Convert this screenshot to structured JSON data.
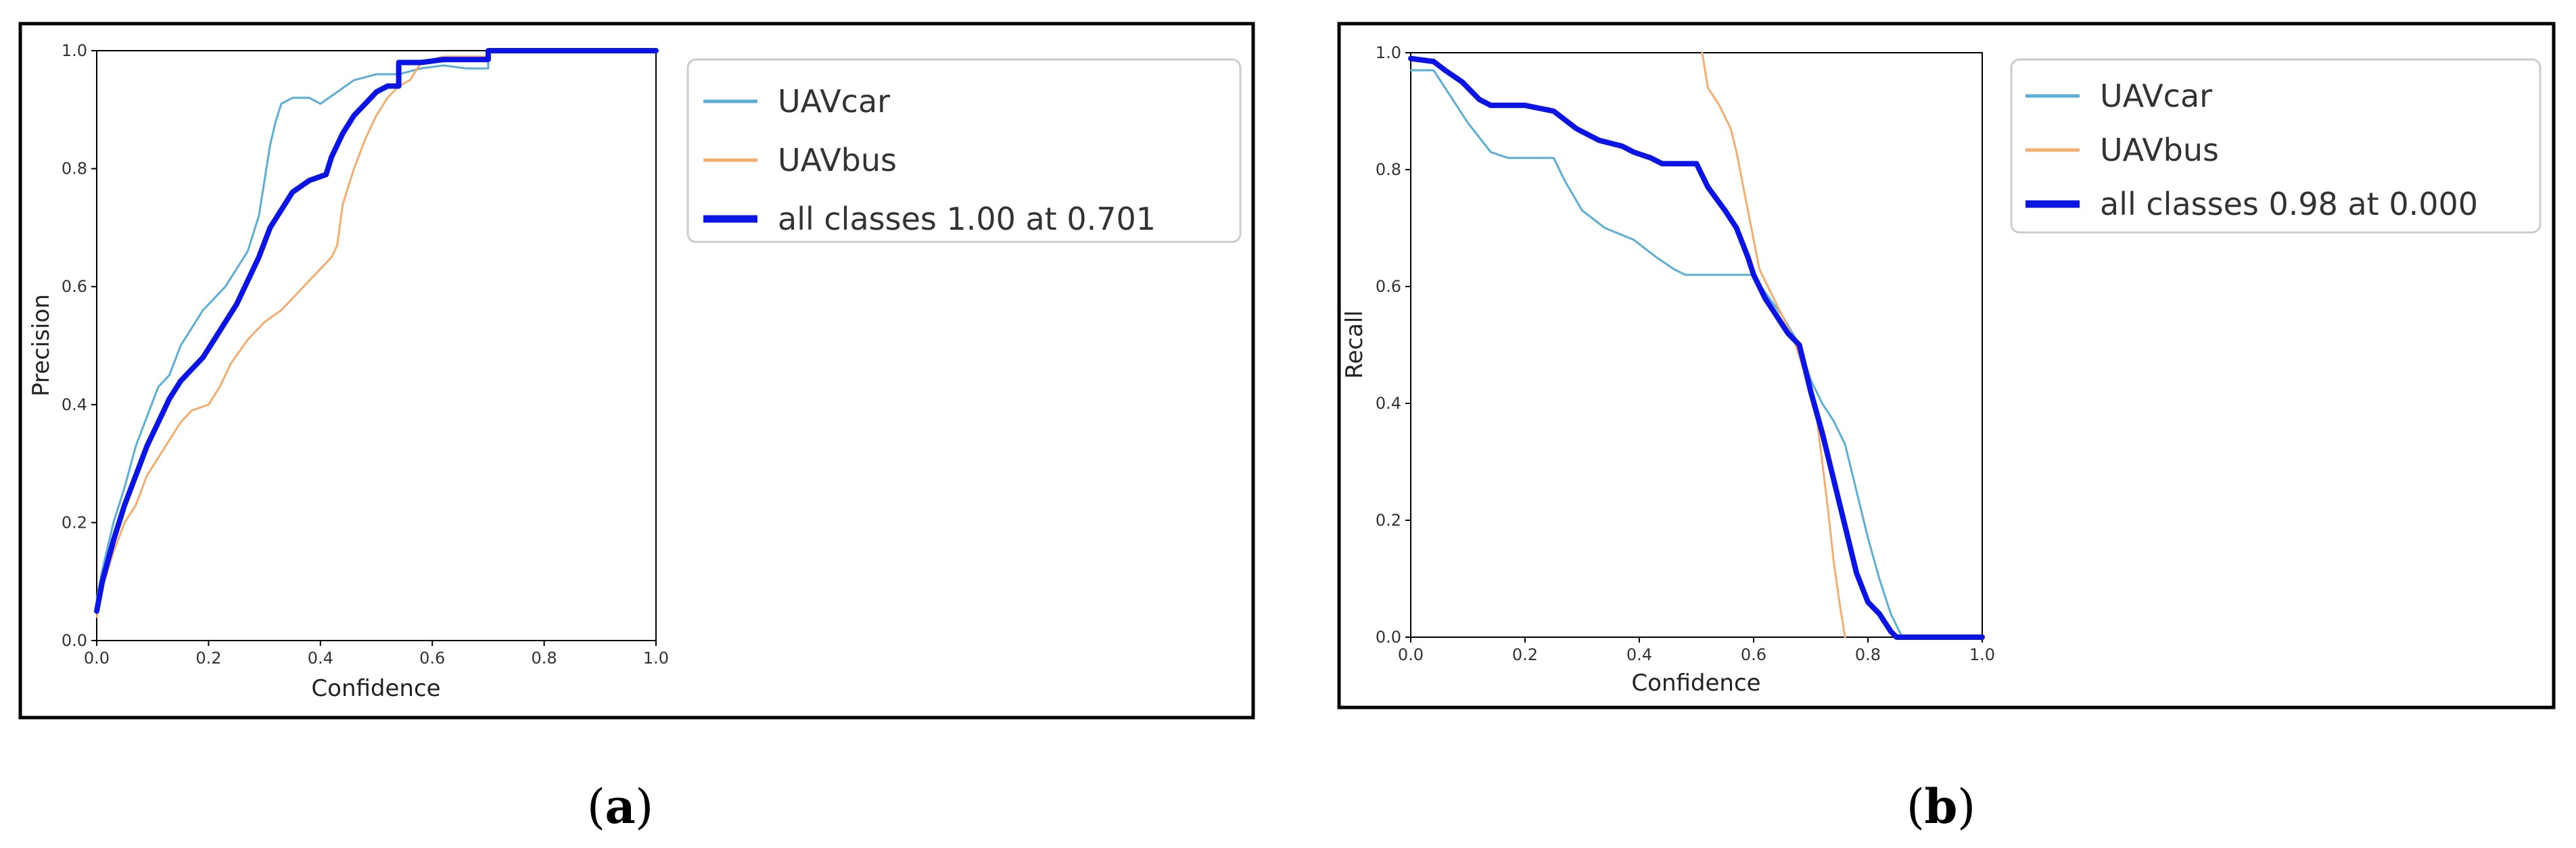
{
  "chart_data": [
    {
      "type": "line",
      "caption_letter": "a",
      "xlabel": "Confidence",
      "ylabel": "Precision",
      "xlim": [
        0,
        1
      ],
      "ylim": [
        0,
        1
      ],
      "xticks": [
        "0.0",
        "0.2",
        "0.4",
        "0.6",
        "0.8",
        "1.0"
      ],
      "yticks": [
        "0.0",
        "0.2",
        "0.4",
        "0.6",
        "0.8",
        "1.0"
      ],
      "grid": false,
      "legend_position": "outside-right-top",
      "series": [
        {
          "name": "UAVcar",
          "color": "#5aaed8",
          "width": "thin",
          "points": [
            [
              0.0,
              0.07
            ],
            [
              0.01,
              0.12
            ],
            [
              0.03,
              0.2
            ],
            [
              0.05,
              0.26
            ],
            [
              0.07,
              0.33
            ],
            [
              0.09,
              0.38
            ],
            [
              0.11,
              0.43
            ],
            [
              0.13,
              0.45
            ],
            [
              0.15,
              0.5
            ],
            [
              0.17,
              0.53
            ],
            [
              0.19,
              0.56
            ],
            [
              0.21,
              0.58
            ],
            [
              0.23,
              0.6
            ],
            [
              0.25,
              0.63
            ],
            [
              0.27,
              0.66
            ],
            [
              0.29,
              0.72
            ],
            [
              0.3,
              0.78
            ],
            [
              0.31,
              0.84
            ],
            [
              0.32,
              0.88
            ],
            [
              0.33,
              0.91
            ],
            [
              0.35,
              0.92
            ],
            [
              0.38,
              0.92
            ],
            [
              0.4,
              0.91
            ],
            [
              0.43,
              0.93
            ],
            [
              0.46,
              0.95
            ],
            [
              0.5,
              0.96
            ],
            [
              0.54,
              0.96
            ],
            [
              0.58,
              0.97
            ],
            [
              0.62,
              0.975
            ],
            [
              0.66,
              0.97
            ],
            [
              0.7,
              0.97
            ],
            [
              0.7,
              1.0
            ],
            [
              1.0,
              1.0
            ]
          ]
        },
        {
          "name": "UAVbus",
          "color": "#f5ad6e",
          "width": "thin",
          "points": [
            [
              0.0,
              0.04
            ],
            [
              0.01,
              0.09
            ],
            [
              0.03,
              0.15
            ],
            [
              0.05,
              0.2
            ],
            [
              0.07,
              0.23
            ],
            [
              0.09,
              0.28
            ],
            [
              0.11,
              0.31
            ],
            [
              0.13,
              0.34
            ],
            [
              0.15,
              0.37
            ],
            [
              0.17,
              0.39
            ],
            [
              0.2,
              0.4
            ],
            [
              0.22,
              0.43
            ],
            [
              0.24,
              0.47
            ],
            [
              0.27,
              0.51
            ],
            [
              0.3,
              0.54
            ],
            [
              0.33,
              0.56
            ],
            [
              0.36,
              0.59
            ],
            [
              0.39,
              0.62
            ],
            [
              0.42,
              0.65
            ],
            [
              0.43,
              0.67
            ],
            [
              0.44,
              0.74
            ],
            [
              0.46,
              0.8
            ],
            [
              0.48,
              0.85
            ],
            [
              0.5,
              0.89
            ],
            [
              0.52,
              0.92
            ],
            [
              0.54,
              0.94
            ],
            [
              0.56,
              0.95
            ],
            [
              0.58,
              0.98
            ],
            [
              0.62,
              0.99
            ],
            [
              0.7,
              0.99
            ],
            [
              0.7,
              1.0
            ],
            [
              1.0,
              1.0
            ]
          ]
        },
        {
          "name": "all classes 1.00 at 0.701",
          "color": "#0a14e6",
          "width": "thick",
          "points": [
            [
              0.0,
              0.05
            ],
            [
              0.01,
              0.1
            ],
            [
              0.03,
              0.17
            ],
            [
              0.05,
              0.23
            ],
            [
              0.07,
              0.28
            ],
            [
              0.09,
              0.33
            ],
            [
              0.11,
              0.37
            ],
            [
              0.13,
              0.41
            ],
            [
              0.15,
              0.44
            ],
            [
              0.17,
              0.46
            ],
            [
              0.19,
              0.48
            ],
            [
              0.21,
              0.51
            ],
            [
              0.23,
              0.54
            ],
            [
              0.25,
              0.57
            ],
            [
              0.27,
              0.61
            ],
            [
              0.29,
              0.65
            ],
            [
              0.31,
              0.7
            ],
            [
              0.33,
              0.73
            ],
            [
              0.35,
              0.76
            ],
            [
              0.38,
              0.78
            ],
            [
              0.41,
              0.79
            ],
            [
              0.42,
              0.82
            ],
            [
              0.44,
              0.86
            ],
            [
              0.46,
              0.89
            ],
            [
              0.48,
              0.91
            ],
            [
              0.5,
              0.93
            ],
            [
              0.52,
              0.94
            ],
            [
              0.54,
              0.94
            ],
            [
              0.54,
              0.98
            ],
            [
              0.58,
              0.98
            ],
            [
              0.62,
              0.985
            ],
            [
              0.66,
              0.985
            ],
            [
              0.7,
              0.985
            ],
            [
              0.7,
              1.0
            ],
            [
              1.0,
              1.0
            ]
          ]
        }
      ]
    },
    {
      "type": "line",
      "caption_letter": "b",
      "xlabel": "Confidence",
      "ylabel": "Recall",
      "xlim": [
        0,
        1
      ],
      "ylim": [
        0,
        1
      ],
      "xticks": [
        "0.0",
        "0.2",
        "0.4",
        "0.6",
        "0.8",
        "1.0"
      ],
      "yticks": [
        "0.0",
        "0.2",
        "0.4",
        "0.6",
        "0.8",
        "1.0"
      ],
      "grid": false,
      "legend_position": "outside-right-top",
      "series": [
        {
          "name": "UAVcar",
          "color": "#5aaed8",
          "width": "thin",
          "points": [
            [
              0.0,
              0.97
            ],
            [
              0.04,
              0.97
            ],
            [
              0.06,
              0.94
            ],
            [
              0.1,
              0.88
            ],
            [
              0.14,
              0.83
            ],
            [
              0.17,
              0.82
            ],
            [
              0.25,
              0.82
            ],
            [
              0.27,
              0.78
            ],
            [
              0.3,
              0.73
            ],
            [
              0.34,
              0.7
            ],
            [
              0.39,
              0.68
            ],
            [
              0.43,
              0.65
            ],
            [
              0.46,
              0.63
            ],
            [
              0.48,
              0.62
            ],
            [
              0.6,
              0.62
            ],
            [
              0.62,
              0.59
            ],
            [
              0.65,
              0.55
            ],
            [
              0.68,
              0.5
            ],
            [
              0.7,
              0.44
            ],
            [
              0.72,
              0.4
            ],
            [
              0.74,
              0.37
            ],
            [
              0.76,
              0.33
            ],
            [
              0.78,
              0.25
            ],
            [
              0.8,
              0.17
            ],
            [
              0.82,
              0.1
            ],
            [
              0.84,
              0.04
            ],
            [
              0.86,
              0.0
            ],
            [
              1.0,
              0.0
            ]
          ]
        },
        {
          "name": "UAVbus",
          "color": "#f5ad6e",
          "width": "thin",
          "points": [
            [
              0.51,
              1.0
            ],
            [
              0.52,
              0.94
            ],
            [
              0.54,
              0.91
            ],
            [
              0.56,
              0.87
            ],
            [
              0.57,
              0.83
            ],
            [
              0.58,
              0.78
            ],
            [
              0.59,
              0.73
            ],
            [
              0.6,
              0.68
            ],
            [
              0.61,
              0.63
            ],
            [
              0.63,
              0.59
            ],
            [
              0.65,
              0.55
            ],
            [
              0.67,
              0.51
            ],
            [
              0.69,
              0.45
            ],
            [
              0.71,
              0.38
            ],
            [
              0.72,
              0.3
            ],
            [
              0.73,
              0.22
            ],
            [
              0.74,
              0.13
            ],
            [
              0.75,
              0.06
            ],
            [
              0.76,
              0.0
            ]
          ]
        },
        {
          "name": "all classes 0.98 at 0.000",
          "color": "#0a14e6",
          "width": "thick",
          "points": [
            [
              0.0,
              0.99
            ],
            [
              0.04,
              0.985
            ],
            [
              0.06,
              0.97
            ],
            [
              0.09,
              0.95
            ],
            [
              0.12,
              0.92
            ],
            [
              0.14,
              0.91
            ],
            [
              0.2,
              0.91
            ],
            [
              0.25,
              0.9
            ],
            [
              0.29,
              0.87
            ],
            [
              0.33,
              0.85
            ],
            [
              0.37,
              0.84
            ],
            [
              0.39,
              0.83
            ],
            [
              0.42,
              0.82
            ],
            [
              0.44,
              0.81
            ],
            [
              0.5,
              0.81
            ],
            [
              0.52,
              0.77
            ],
            [
              0.55,
              0.73
            ],
            [
              0.57,
              0.7
            ],
            [
              0.59,
              0.65
            ],
            [
              0.6,
              0.62
            ],
            [
              0.62,
              0.58
            ],
            [
              0.64,
              0.55
            ],
            [
              0.66,
              0.52
            ],
            [
              0.68,
              0.5
            ],
            [
              0.7,
              0.42
            ],
            [
              0.72,
              0.35
            ],
            [
              0.74,
              0.27
            ],
            [
              0.76,
              0.19
            ],
            [
              0.78,
              0.11
            ],
            [
              0.8,
              0.06
            ],
            [
              0.82,
              0.04
            ],
            [
              0.84,
              0.01
            ],
            [
              0.85,
              0.0
            ],
            [
              1.0,
              0.0
            ]
          ]
        }
      ]
    }
  ]
}
